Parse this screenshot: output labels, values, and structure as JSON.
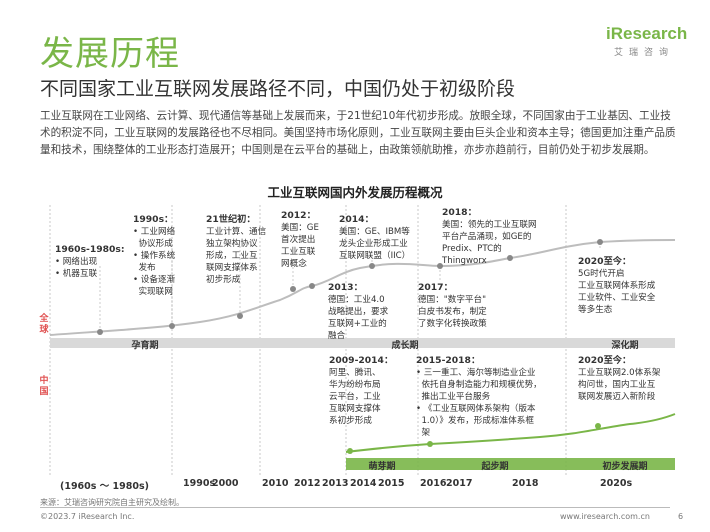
{
  "title": "发展历程",
  "subtitle": "不同国家工业互联网发展路径不同，中国仍处于初级阶段",
  "intro": "工业互联网在工业网络、云计算、现代通信等基础上发展而来，于21世纪10年代初步形成。放眼全球，不同国家由于工业基因、工业技术的积淀不同，工业互联网的发展路径也不尽相同。美国坚持市场化原则，工业互联网主要由巨头企业和资本主导；德国更加注重产品质量和技术，围绕整体的工业形态打造展开；中国则是在云平台的基础上，由政策领航助推，亦步亦趋前行，目前仍处于初步发展期。",
  "logo": {
    "text": "iResearch",
    "sub": "艾瑞咨询"
  },
  "diagram_title": "工业互联网国内外发展历程概况",
  "global": {
    "side_label": "全球",
    "phases": [
      "孕育期",
      "成长期",
      "深化期"
    ],
    "events": [
      {
        "year": "1960s-1980s:",
        "text": "• 网络出现\n• 机器互联"
      },
      {
        "year": "1990s：",
        "text": "• 工业网络\n  协议形成\n• 操作系统\n  发布\n• 设备逐渐\n  实现联网"
      },
      {
        "year": "21世纪初：",
        "text": "工业计算、通信\n独立架构协议\n形成，工业互\n联网支撑体系\n初步形成"
      },
      {
        "year": "2012：",
        "text": "美国：GE\n首次提出\n工业互联\n网概念"
      },
      {
        "year": "2013：",
        "text": "德国：工业4.0\n战略提出，要求\n互联网+工业的\n融合"
      },
      {
        "year": "2014：",
        "text": "美国：GE、IBM等\n龙头企业形成工业\n互联网联盟（IIC）"
      },
      {
        "year": "2017：",
        "text": "德国：\"数字平台\"\n白皮书发布，制定\n了数字化转换政策"
      },
      {
        "year": "2018：",
        "text": "美国：领先的工业互联网\n平台产品涌现，如GE的\nPredix、PTC的\nThingworx"
      },
      {
        "year": "2020至今：",
        "text": "5G时代开启\n工业互联网体系形成\n工业软件、工业安全\n等多生态"
      }
    ]
  },
  "china": {
    "side_label": "中国",
    "phases": [
      "萌芽期",
      "起步期",
      "初步发展期"
    ],
    "events": [
      {
        "year": "2009-2014：",
        "text": "阿里、腾讯、\n华为纷纷布局\n云平台，工业\n互联网支撑体\n系初步形成"
      },
      {
        "year": "2015-2018：",
        "text": "• 三一重工、海尔等制造业企业\n  依托自身制造能力和规模优势，\n  推出工业平台服务\n• 《工业互联网体系架构（版本\n  1.0）》发布，形成标准体系框\n  架"
      },
      {
        "year": "2020至今：",
        "text": "工业互联网2.0体系架\n构问世，国内工业互\n联网发展迈入新阶段"
      }
    ]
  },
  "timeline_labels": [
    "(1960s ～ 1980s)",
    "1990s",
    "2000",
    "2010",
    "2012",
    "2013",
    "2014",
    "2015",
    "2016",
    "2017",
    "2018",
    "2020s"
  ],
  "source": "来源：艾瑞咨询研究院自主研究及绘制。",
  "copyright": "©2023.7 iResearch Inc.",
  "website": "www.iresearch.com.cn",
  "page_number": "6",
  "colors": {
    "accent": "#7ab648",
    "red": "#e05252",
    "band": "#d9d9d9"
  }
}
